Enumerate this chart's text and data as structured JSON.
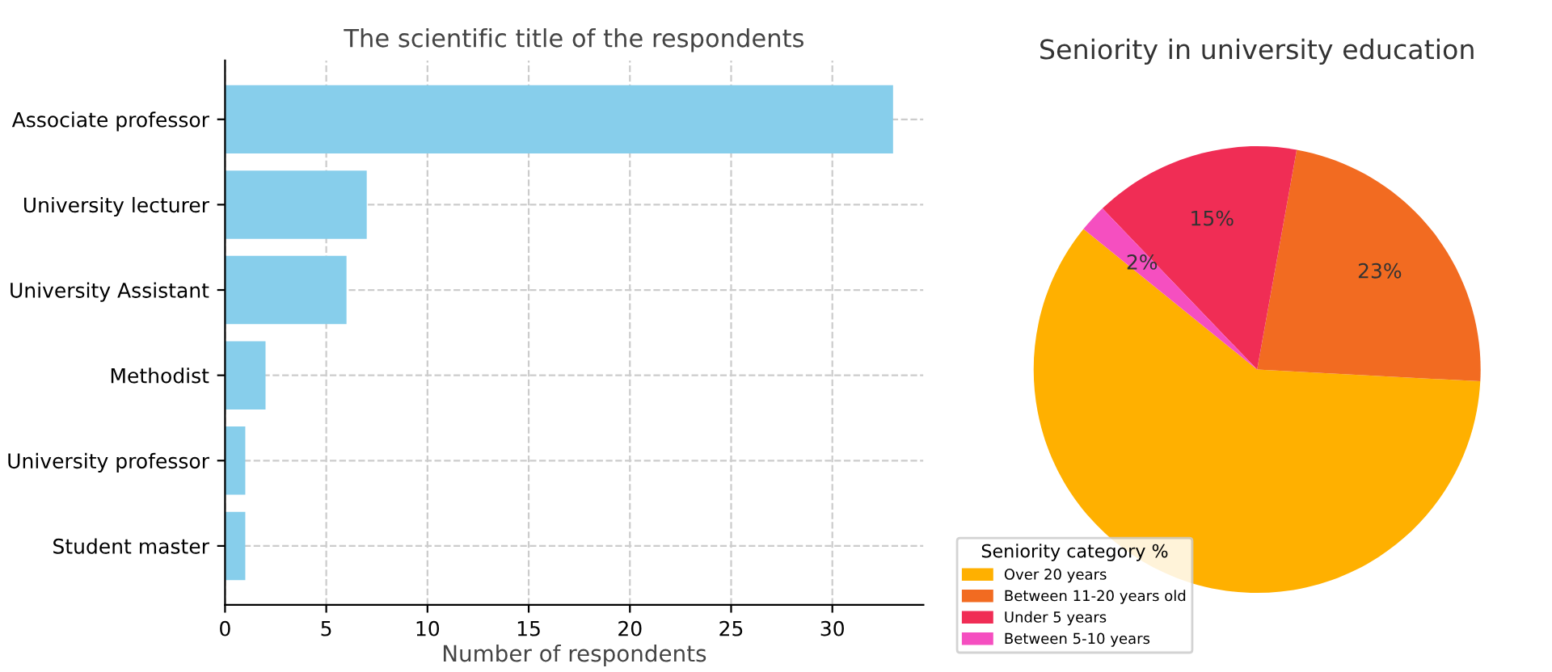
{
  "chart_data": [
    {
      "type": "bar",
      "orientation": "horizontal",
      "title": "The scientific title of the respondents",
      "xlabel": "Number of respondents",
      "categories": [
        "Associate professor",
        "University lecturer",
        "University Assistant",
        "Methodist",
        "University professor",
        "Student master"
      ],
      "values": [
        33,
        7,
        6,
        2,
        1,
        1
      ],
      "color": "#87ceeb",
      "xlim": [
        0,
        34.5
      ],
      "xticks": [
        0,
        5,
        10,
        15,
        20,
        25,
        30
      ],
      "grid": true
    },
    {
      "type": "pie",
      "title": "Seniority in university education",
      "legend_title": "Seniority category %",
      "legend": "bottom left",
      "categories": [
        "Over 20 years",
        "Between 11-20 years old",
        "Under 5 years",
        "Between 5-10 years"
      ],
      "values": [
        60,
        23,
        15,
        2
      ],
      "colors": [
        "#ffb000",
        "#f26b21",
        "#f02d55",
        "#f54fc0"
      ],
      "value_labels": [
        null,
        "23%",
        "15%",
        "2%"
      ]
    }
  ]
}
